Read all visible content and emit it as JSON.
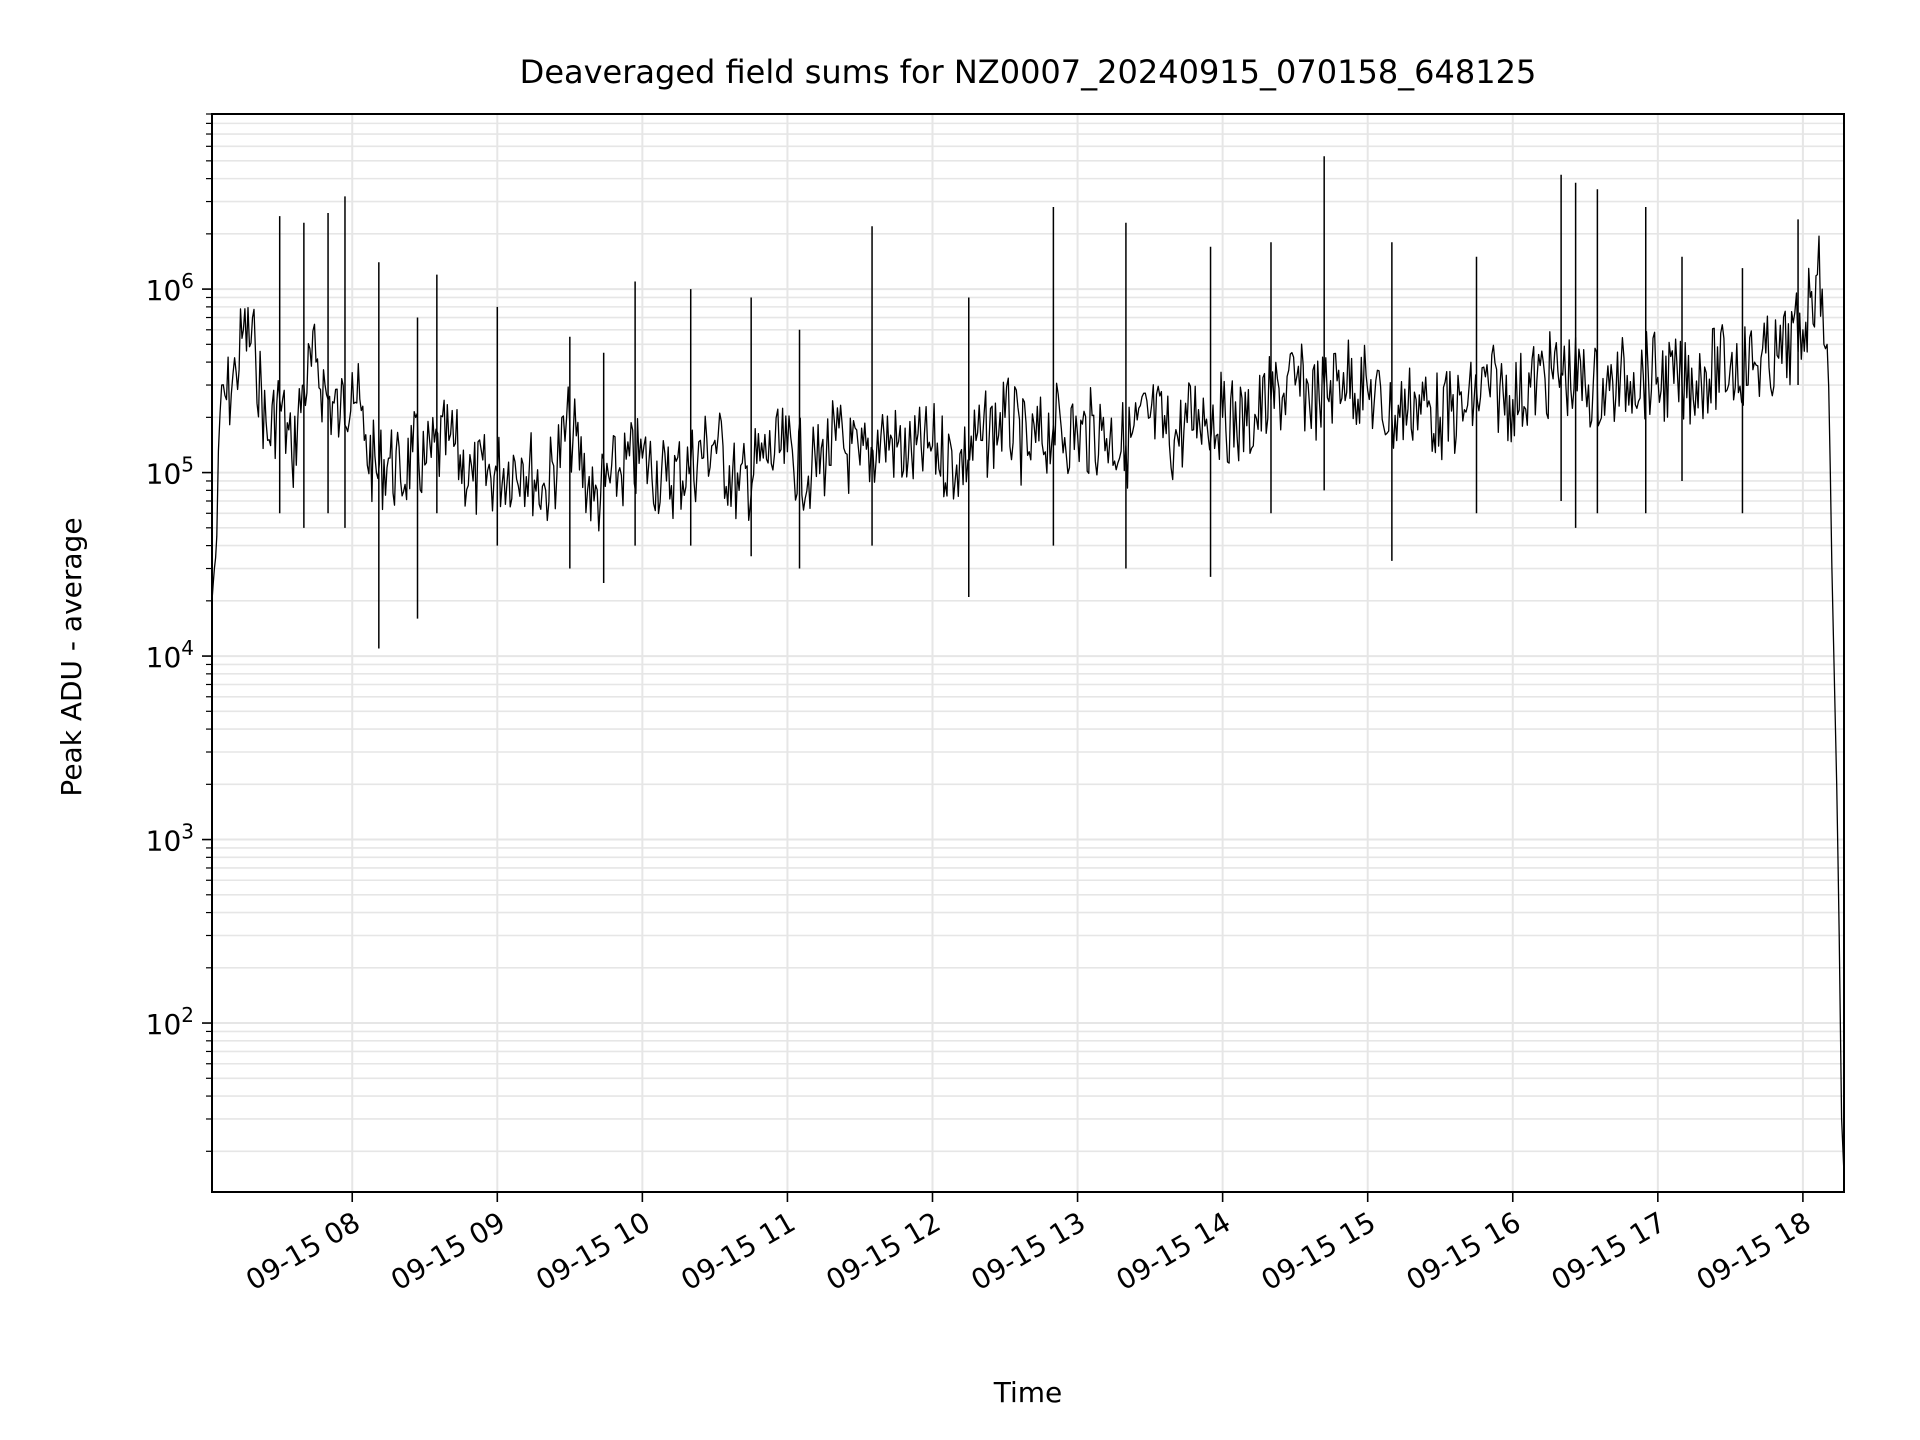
{
  "chart_data": {
    "type": "line",
    "title": "Deaveraged field sums for NZ0007_20240915_070158_648125",
    "xlabel": "Time",
    "ylabel": "Peak ADU - average",
    "yscale": "log",
    "ylim": [
      12,
      9000000
    ],
    "xlim": [
      "2024-09-15 07:02",
      "2024-09-15 18:17"
    ],
    "grid": true,
    "line_color": "#000000",
    "x_ticks": [
      {
        "t": "2024-09-15 08:00",
        "label": "09-15 08"
      },
      {
        "t": "2024-09-15 09:00",
        "label": "09-15 09"
      },
      {
        "t": "2024-09-15 10:00",
        "label": "09-15 10"
      },
      {
        "t": "2024-09-15 11:00",
        "label": "09-15 11"
      },
      {
        "t": "2024-09-15 12:00",
        "label": "09-15 12"
      },
      {
        "t": "2024-09-15 13:00",
        "label": "09-15 13"
      },
      {
        "t": "2024-09-15 14:00",
        "label": "09-15 14"
      },
      {
        "t": "2024-09-15 15:00",
        "label": "09-15 15"
      },
      {
        "t": "2024-09-15 16:00",
        "label": "09-15 16"
      },
      {
        "t": "2024-09-15 17:00",
        "label": "09-15 17"
      },
      {
        "t": "2024-09-15 18:00",
        "label": "09-15 18"
      }
    ],
    "y_ticks": [
      {
        "value": 100,
        "base": "10",
        "exp": "2"
      },
      {
        "value": 1000,
        "base": "10",
        "exp": "3"
      },
      {
        "value": 10000,
        "base": "10",
        "exp": "4"
      },
      {
        "value": 100000,
        "base": "10",
        "exp": "5"
      },
      {
        "value": 1000000,
        "base": "10",
        "exp": "6"
      }
    ],
    "series": [
      {
        "x": [
          "2024-09-15 07:02",
          "2024-09-15 07:03",
          "2024-09-15 07:04",
          "2024-09-15 07:06",
          "2024-09-15 07:08",
          "2024-09-15 07:12",
          "2024-09-15 07:15",
          "2024-09-15 07:20",
          "2024-09-15 07:25",
          "2024-09-15 07:30",
          "2024-09-15 07:35",
          "2024-09-15 07:40",
          "2024-09-15 07:45",
          "2024-09-15 07:50",
          "2024-09-15 07:55",
          "2024-09-15 08:00",
          "2024-09-15 08:05",
          "2024-09-15 08:10",
          "2024-09-15 08:15",
          "2024-09-15 08:20",
          "2024-09-15 08:25",
          "2024-09-15 08:30",
          "2024-09-15 08:40",
          "2024-09-15 08:50",
          "2024-09-15 09:00",
          "2024-09-15 09:10",
          "2024-09-15 09:20",
          "2024-09-15 09:30",
          "2024-09-15 09:40",
          "2024-09-15 09:50",
          "2024-09-15 10:00",
          "2024-09-15 10:10",
          "2024-09-15 10:20",
          "2024-09-15 10:30",
          "2024-09-15 10:40",
          "2024-09-15 10:50",
          "2024-09-15 11:00",
          "2024-09-15 11:10",
          "2024-09-15 11:20",
          "2024-09-15 11:30",
          "2024-09-15 11:40",
          "2024-09-15 11:50",
          "2024-09-15 12:00",
          "2024-09-15 12:10",
          "2024-09-15 12:20",
          "2024-09-15 12:30",
          "2024-09-15 12:40",
          "2024-09-15 12:50",
          "2024-09-15 13:00",
          "2024-09-15 13:10",
          "2024-09-15 13:20",
          "2024-09-15 13:30",
          "2024-09-15 13:40",
          "2024-09-15 13:50",
          "2024-09-15 14:00",
          "2024-09-15 14:10",
          "2024-09-15 14:20",
          "2024-09-15 14:30",
          "2024-09-15 14:40",
          "2024-09-15 14:50",
          "2024-09-15 15:00",
          "2024-09-15 15:10",
          "2024-09-15 15:20",
          "2024-09-15 15:30",
          "2024-09-15 15:40",
          "2024-09-15 15:50",
          "2024-09-15 16:00",
          "2024-09-15 16:10",
          "2024-09-15 16:20",
          "2024-09-15 16:30",
          "2024-09-15 16:40",
          "2024-09-15 16:50",
          "2024-09-15 17:00",
          "2024-09-15 17:10",
          "2024-09-15 17:20",
          "2024-09-15 17:30",
          "2024-09-15 17:40",
          "2024-09-15 17:50",
          "2024-09-15 18:00",
          "2024-09-15 18:03",
          "2024-09-15 18:06",
          "2024-09-15 18:08",
          "2024-09-15 18:10",
          "2024-09-15 18:12",
          "2024-09-15 18:14",
          "2024-09-15 18:15",
          "2024-09-15 18:16",
          "2024-09-15 18:17"
        ],
        "y": [
          20000,
          30000,
          45000,
          300000,
          250000,
          350000,
          600000,
          450000,
          150000,
          250000,
          120000,
          300000,
          400000,
          250000,
          200000,
          350000,
          150000,
          100000,
          120000,
          90000,
          130000,
          110000,
          150000,
          90000,
          100000,
          120000,
          80000,
          180000,
          70000,
          100000,
          120000,
          90000,
          110000,
          150000,
          80000,
          120000,
          130000,
          100000,
          150000,
          110000,
          160000,
          120000,
          140000,
          110000,
          150000,
          200000,
          130000,
          180000,
          160000,
          170000,
          140000,
          200000,
          150000,
          220000,
          200000,
          180000,
          250000,
          300000,
          250000,
          350000,
          280000,
          200000,
          250000,
          200000,
          220000,
          300000,
          250000,
          320000,
          350000,
          300000,
          280000,
          350000,
          330000,
          300000,
          350000,
          380000,
          400000,
          420000,
          600000,
          900000,
          1200000,
          1000000,
          500000,
          30000,
          2000,
          300,
          30,
          15
        ]
      }
    ],
    "spikes": [
      {
        "t": "2024-09-15 07:30",
        "peak": 2500000,
        "low": 60000
      },
      {
        "t": "2024-09-15 07:40",
        "peak": 2300000,
        "low": 50000
      },
      {
        "t": "2024-09-15 07:50",
        "peak": 2600000,
        "low": 60000
      },
      {
        "t": "2024-09-15 07:57",
        "peak": 3200000,
        "low": 50000
      },
      {
        "t": "2024-09-15 08:11",
        "peak": 1400000,
        "low": 11000
      },
      {
        "t": "2024-09-15 08:27",
        "peak": 700000,
        "low": 16000
      },
      {
        "t": "2024-09-15 08:35",
        "peak": 1200000,
        "low": 60000
      },
      {
        "t": "2024-09-15 09:00",
        "peak": 800000,
        "low": 40000
      },
      {
        "t": "2024-09-15 09:30",
        "peak": 550000,
        "low": 30000
      },
      {
        "t": "2024-09-15 09:44",
        "peak": 450000,
        "low": 25000
      },
      {
        "t": "2024-09-15 09:57",
        "peak": 1100000,
        "low": 40000
      },
      {
        "t": "2024-09-15 10:20",
        "peak": 1000000,
        "low": 40000
      },
      {
        "t": "2024-09-15 10:45",
        "peak": 900000,
        "low": 35000
      },
      {
        "t": "2024-09-15 11:05",
        "peak": 600000,
        "low": 30000
      },
      {
        "t": "2024-09-15 11:35",
        "peak": 2200000,
        "low": 40000
      },
      {
        "t": "2024-09-15 12:15",
        "peak": 900000,
        "low": 21000
      },
      {
        "t": "2024-09-15 12:50",
        "peak": 2800000,
        "low": 40000
      },
      {
        "t": "2024-09-15 13:20",
        "peak": 2300000,
        "low": 30000
      },
      {
        "t": "2024-09-15 13:55",
        "peak": 1700000,
        "low": 27000
      },
      {
        "t": "2024-09-15 14:20",
        "peak": 1800000,
        "low": 60000
      },
      {
        "t": "2024-09-15 14:42",
        "peak": 5300000,
        "low": 80000
      },
      {
        "t": "2024-09-15 15:10",
        "peak": 1800000,
        "low": 33000
      },
      {
        "t": "2024-09-15 15:45",
        "peak": 1500000,
        "low": 60000
      },
      {
        "t": "2024-09-15 16:20",
        "peak": 4200000,
        "low": 70000
      },
      {
        "t": "2024-09-15 16:26",
        "peak": 3800000,
        "low": 50000
      },
      {
        "t": "2024-09-15 16:35",
        "peak": 3500000,
        "low": 60000
      },
      {
        "t": "2024-09-15 16:55",
        "peak": 2800000,
        "low": 60000
      },
      {
        "t": "2024-09-15 17:10",
        "peak": 1500000,
        "low": 90000
      },
      {
        "t": "2024-09-15 17:35",
        "peak": 1300000,
        "low": 60000
      },
      {
        "t": "2024-09-15 17:58",
        "peak": 2400000,
        "low": 300000
      }
    ]
  }
}
